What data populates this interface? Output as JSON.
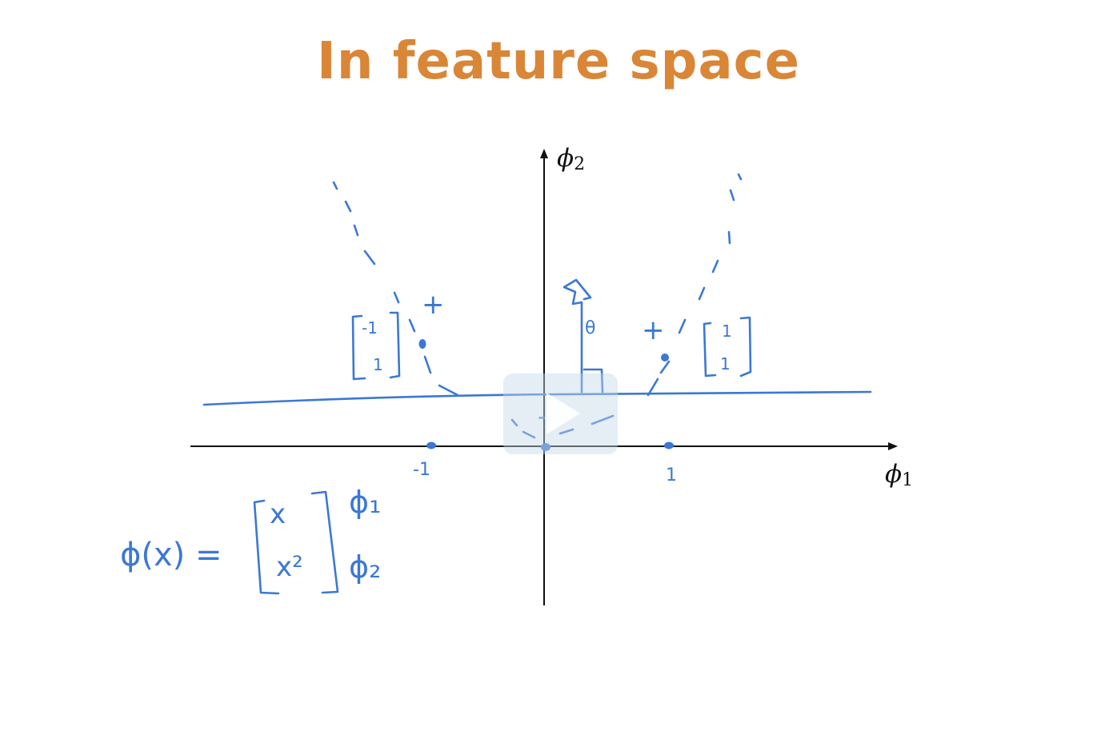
{
  "slide": {
    "title": "In feature space",
    "title_color": "#d98637"
  },
  "axes": {
    "x_axis_symbol": "ϕ",
    "x_axis_subscript": "1",
    "y_axis_symbol": "ϕ",
    "y_axis_subscript": "2"
  },
  "annotations": {
    "ink_color": "#3b78d4",
    "tick_neg_one": "-1",
    "tick_pos_one": "1",
    "left_vector_top": "-1",
    "left_vector_bottom": "1",
    "right_vector_top": "1",
    "right_vector_bottom": "1",
    "plus_label": "+",
    "minus_label": "-",
    "theta_label": "θ",
    "formula_lhs": "ϕ(x) =",
    "formula_top_entry": "x",
    "formula_bottom_entry": "x²",
    "formula_row1_name": "ϕ₁",
    "formula_row2_name": "ϕ₂"
  },
  "player": {
    "overlay_icon": "play-icon"
  }
}
